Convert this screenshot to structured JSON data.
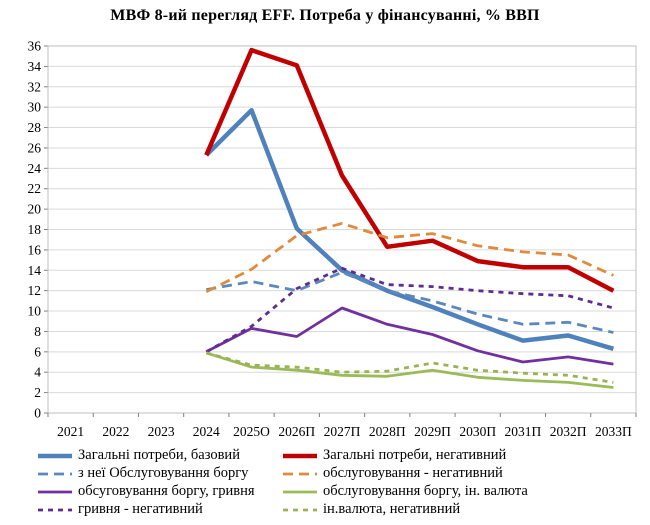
{
  "chart_data": {
    "type": "line",
    "title": "МВФ 8-ий перегляд EFF. Потреба у фінансуванні, % ВВП",
    "xlabel": "",
    "ylabel": "",
    "ylim": [
      0,
      36
    ],
    "y_tick_step": 2,
    "y_ticks": [
      0,
      2,
      4,
      6,
      8,
      10,
      12,
      14,
      16,
      18,
      20,
      22,
      24,
      26,
      28,
      30,
      32,
      34,
      36
    ],
    "grid": "horizontal",
    "legend_position": "bottom",
    "categories": [
      "2021",
      "2022",
      "2023",
      "2024",
      "2025О",
      "2026П",
      "2027П",
      "2028П",
      "2029П",
      "2030П",
      "2031П",
      "2032П",
      "2033П"
    ],
    "series": [
      {
        "name": "Загальні потреби, базовий",
        "color": "#4F81BD",
        "style": "solid-thick",
        "values": [
          null,
          null,
          null,
          25.3,
          29.7,
          18.1,
          14.0,
          12.0,
          10.4,
          8.7,
          7.1,
          7.6,
          6.3
        ]
      },
      {
        "name": "Загальні потреби, негативний",
        "color": "#C00000",
        "style": "solid-thick",
        "values": [
          null,
          null,
          null,
          25.3,
          35.6,
          34.1,
          23.3,
          16.3,
          16.9,
          14.9,
          14.3,
          14.3,
          12.0
        ]
      },
      {
        "name": "з неї Обслуговування боргу",
        "color": "#5B88BE",
        "style": "dashed-long",
        "values": [
          null,
          null,
          null,
          12.1,
          12.9,
          12.0,
          13.8,
          12.0,
          11.0,
          9.7,
          8.7,
          8.9,
          7.9
        ]
      },
      {
        "name": "обслуговування - негативний",
        "color": "#E08A3C",
        "style": "dashed-long",
        "values": [
          null,
          null,
          null,
          11.9,
          14.1,
          17.4,
          18.6,
          17.2,
          17.6,
          16.4,
          15.8,
          15.5,
          13.5
        ]
      },
      {
        "name": "обсуговування боргу, гривня",
        "color": "#7030A0",
        "style": "solid",
        "values": [
          null,
          null,
          null,
          6.0,
          8.3,
          7.5,
          10.3,
          8.7,
          7.7,
          6.1,
          5.0,
          5.5,
          4.8
        ]
      },
      {
        "name": "обслуговування боргу, ін. валюта",
        "color": "#9BBB59",
        "style": "solid",
        "values": [
          null,
          null,
          null,
          5.9,
          4.5,
          4.2,
          3.7,
          3.6,
          4.2,
          3.5,
          3.2,
          3.0,
          2.5
        ]
      },
      {
        "name": "гривня - негативний",
        "color": "#5F2D91",
        "style": "dashed-short",
        "values": [
          null,
          null,
          null,
          6.0,
          8.5,
          12.2,
          14.2,
          12.6,
          12.4,
          12.0,
          11.7,
          11.5,
          10.3
        ]
      },
      {
        "name": "ін.валюта, негативний",
        "color": "#99B356",
        "style": "dashed-short",
        "values": [
          null,
          null,
          null,
          5.9,
          4.7,
          4.5,
          4.0,
          4.1,
          4.9,
          4.2,
          3.9,
          3.7,
          3.0
        ]
      }
    ],
    "colors": {
      "gridline": "#D9D9D9",
      "plot_border": "#BFBFBF",
      "text": "#000000"
    }
  }
}
